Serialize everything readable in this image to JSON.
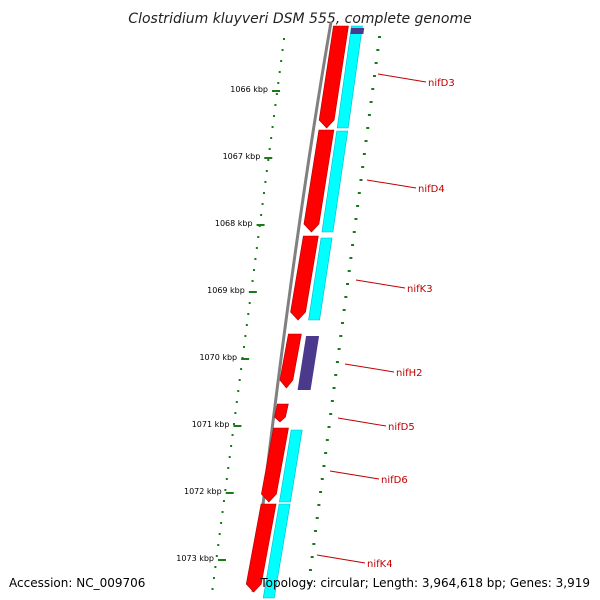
{
  "title": "Clostridium kluyveri DSM 555, complete genome",
  "footer": {
    "accession": "Accession: NC_009706",
    "topology": "Topology: circular; Length: 3,964,618 bp; Genes: 3,919"
  },
  "ticks": [
    "1066 kbp",
    "1067 kbp",
    "1068 kbp",
    "1069 kbp",
    "1070 kbp",
    "1071 kbp",
    "1072 kbp",
    "1073 kbp"
  ],
  "genes": [
    "nifD3",
    "nifD4",
    "nifK3",
    "nifH2",
    "nifD5",
    "nifD6",
    "nifK4"
  ],
  "colors": {
    "forward_cds": "#ff0000",
    "cds_match": "#00ffff",
    "other_feature": "#4b3a8c",
    "backbone": "#808080",
    "tick": "#1a7a1a",
    "label": "#c00000"
  }
}
